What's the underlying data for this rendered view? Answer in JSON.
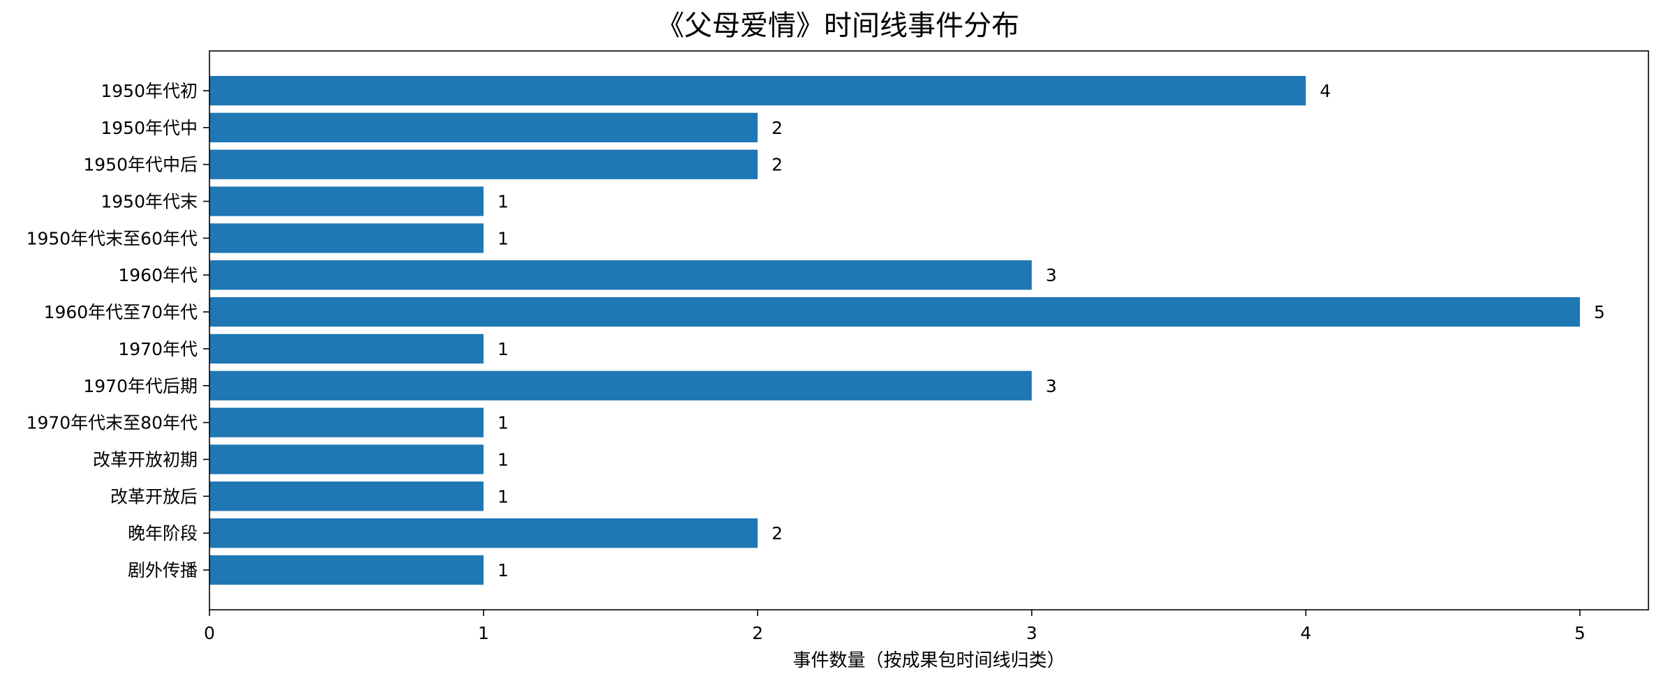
{
  "chart_data": {
    "type": "bar",
    "orientation": "horizontal",
    "title": "《父母爱情》时间线事件分布",
    "xlabel": "事件数量（按成果包时间线归类）",
    "ylabel": "",
    "categories": [
      "1950年代初",
      "1950年代中",
      "1950年代中后",
      "1950年代末",
      "1950年代末至60年代",
      "1960年代",
      "1960年代至70年代",
      "1970年代",
      "1970年代后期",
      "1970年代末至80年代",
      "改革开放初期",
      "改革开放后",
      "晚年阶段",
      "剧外传播"
    ],
    "values": [
      4,
      2,
      2,
      1,
      1,
      3,
      5,
      1,
      3,
      1,
      1,
      1,
      2,
      1
    ],
    "xlim": [
      0,
      5.25
    ],
    "xticks": [
      0,
      1,
      2,
      3,
      4,
      5
    ],
    "grid": false,
    "bar_color": "#1f77b4",
    "show_data_labels": true
  }
}
